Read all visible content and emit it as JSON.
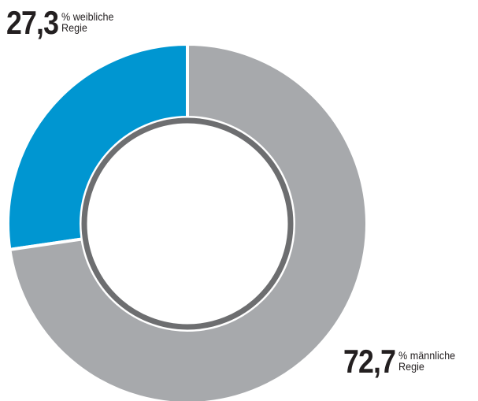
{
  "chart_data": {
    "type": "donut",
    "categories": [
      "% weibliche Regie",
      "% männliche Regie"
    ],
    "values": [
      27.3,
      72.7
    ],
    "value_labels": [
      "27,3",
      "72,7"
    ],
    "colors": [
      "#0096d1",
      "#a7a9ac"
    ]
  }
}
